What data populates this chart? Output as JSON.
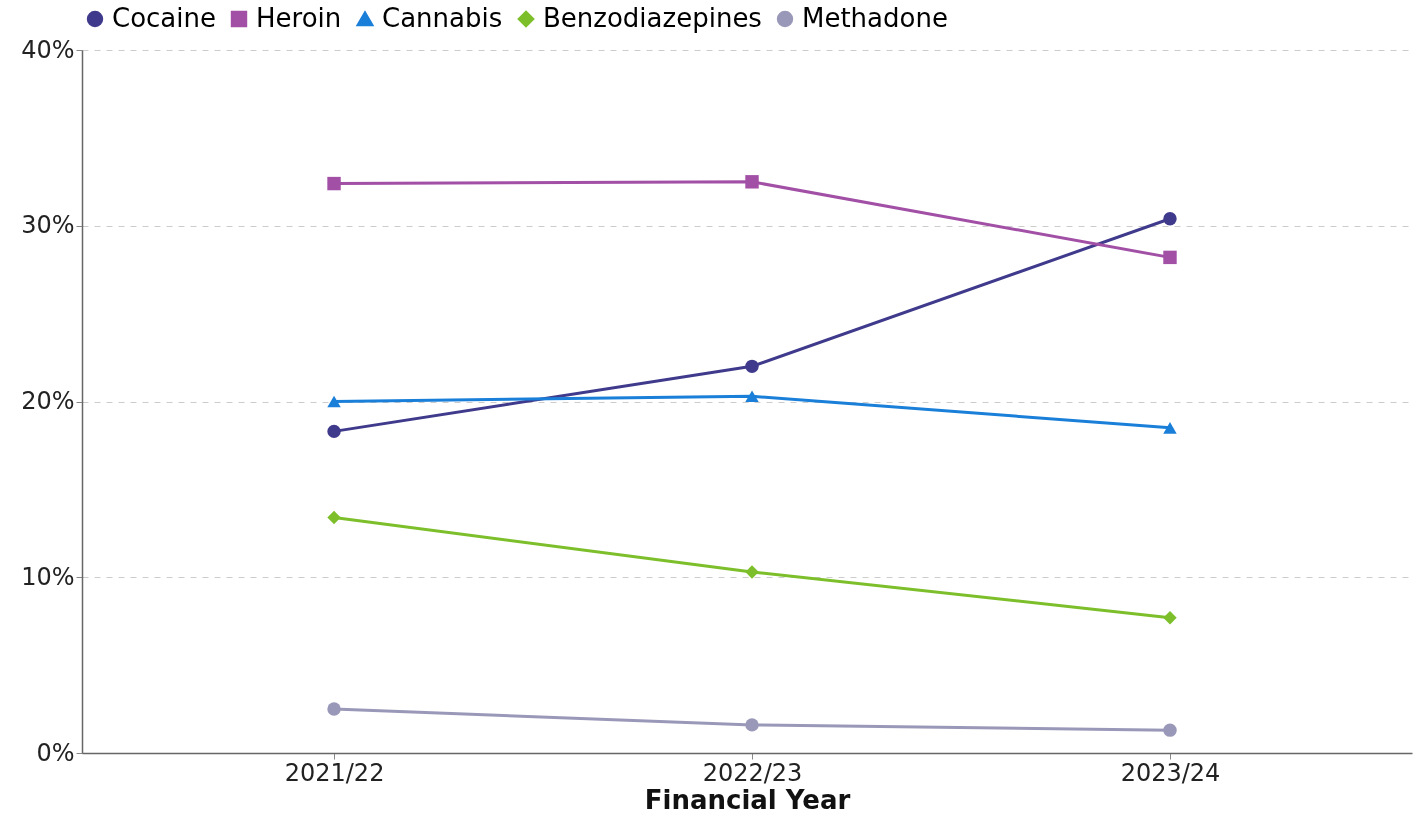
{
  "chart_data": {
    "type": "line",
    "xlabel": "Financial Year",
    "categories": [
      "2021/22",
      "2022/23",
      "2023/24"
    ],
    "series": [
      {
        "name": "Cocaine",
        "color": "#3f3a8c",
        "marker": "circle",
        "values": [
          18.3,
          22.0,
          30.4
        ]
      },
      {
        "name": "Heroin",
        "color": "#a24fa6",
        "marker": "square",
        "values": [
          32.4,
          32.5,
          28.2
        ]
      },
      {
        "name": "Cannabis",
        "color": "#1a7fd9",
        "marker": "triangle",
        "values": [
          20.0,
          20.3,
          18.5
        ]
      },
      {
        "name": "Benzodiazepines",
        "color": "#7cbf2a",
        "marker": "diamond",
        "values": [
          13.4,
          10.3,
          7.7
        ]
      },
      {
        "name": "Methadone",
        "color": "#9a98b8",
        "marker": "circle",
        "values": [
          2.5,
          1.6,
          1.3
        ]
      }
    ],
    "ylim": [
      0,
      40
    ],
    "yticks": [
      {
        "value": 0,
        "label": "0%"
      },
      {
        "value": 10,
        "label": "10%"
      },
      {
        "value": 20,
        "label": "20%"
      },
      {
        "value": 30,
        "label": "30%"
      },
      {
        "value": 40,
        "label": "40%"
      }
    ],
    "grid": "y",
    "legend": "top",
    "line_style": "solid"
  }
}
